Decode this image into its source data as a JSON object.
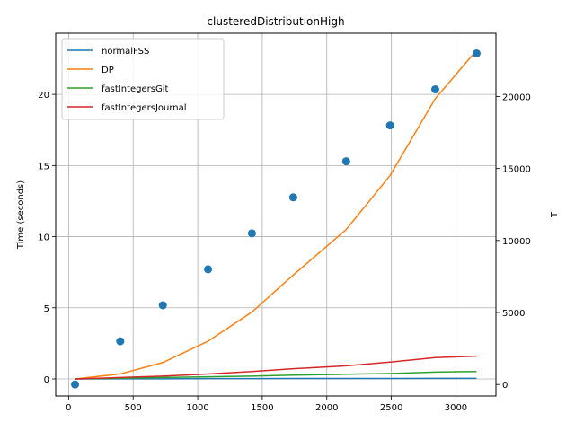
{
  "chart_data": {
    "type": "line",
    "title": "clusteredDistributionHigh",
    "xlabel": "",
    "ylabel": "Time (seconds)",
    "y2label": "T",
    "xlim": [
      -100,
      3310
    ],
    "ylim": [
      -1.2,
      24.3
    ],
    "y2lim": [
      -800,
      24400
    ],
    "x_ticks": [
      0,
      500,
      1000,
      1500,
      2000,
      2500,
      3000
    ],
    "y_ticks": [
      0,
      5,
      10,
      15,
      20
    ],
    "y2_ticks": [
      0,
      5000,
      10000,
      15000,
      20000
    ],
    "grid": true,
    "legend_position": "top-left",
    "x": [
      50,
      400,
      730,
      1080,
      1420,
      1740,
      2150,
      2490,
      2840,
      3160
    ],
    "series": [
      {
        "name": "normalFSS",
        "color": "#1f77b4",
        "axis": "left",
        "values": [
          0.0,
          0.01,
          0.01,
          0.02,
          0.02,
          0.03,
          0.03,
          0.03,
          0.04,
          0.04
        ]
      },
      {
        "name": "DP",
        "color": "#ff7f0e",
        "axis": "left",
        "values": [
          0.0,
          0.35,
          1.15,
          2.65,
          4.7,
          7.3,
          10.5,
          14.3,
          19.7,
          23.1
        ]
      },
      {
        "name": "fastIntegersGit",
        "color": "#2ca02c",
        "axis": "left",
        "values": [
          0.0,
          0.05,
          0.1,
          0.15,
          0.2,
          0.27,
          0.33,
          0.38,
          0.48,
          0.52
        ]
      },
      {
        "name": "fastIntegersJournal",
        "color": "#d62728",
        "axis": "left",
        "values": [
          0.0,
          0.1,
          0.2,
          0.35,
          0.52,
          0.72,
          0.92,
          1.18,
          1.5,
          1.6
        ]
      }
    ],
    "scatter": {
      "color": "#1f77b4",
      "axis": "right",
      "points": [
        {
          "x": 50,
          "y": 0
        },
        {
          "x": 400,
          "y": 3000
        },
        {
          "x": 730,
          "y": 5500
        },
        {
          "x": 1080,
          "y": 8000
        },
        {
          "x": 1420,
          "y": 10500
        },
        {
          "x": 1740,
          "y": 13000
        },
        {
          "x": 2150,
          "y": 15500
        },
        {
          "x": 2490,
          "y": 18000
        },
        {
          "x": 2840,
          "y": 20500
        },
        {
          "x": 3160,
          "y": 23000
        }
      ]
    }
  }
}
